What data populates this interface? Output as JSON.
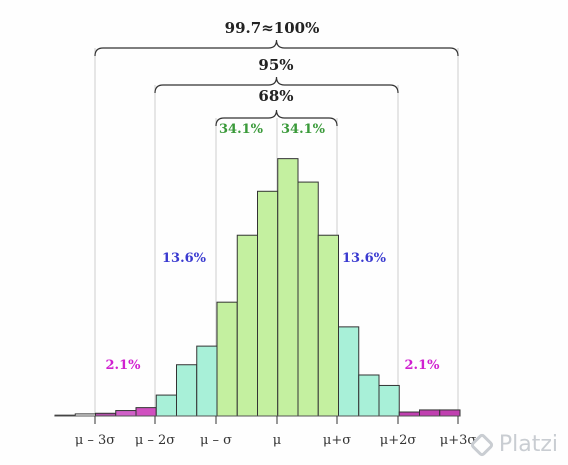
{
  "chart_data": {
    "type": "bar",
    "title": "",
    "xlabel": "",
    "ylabel": "",
    "x_ticks": [
      "μ – 3σ",
      "μ – 2σ",
      "μ – σ",
      "μ",
      "μ+σ",
      "μ+2σ",
      "μ+3σ"
    ],
    "bins": [
      {
        "value": 0.4,
        "region": "tail"
      },
      {
        "value": 1.0,
        "region": "tail"
      },
      {
        "value": 1.3,
        "region": "tail"
      },
      {
        "value": 2.6,
        "region": "tail"
      },
      {
        "value": 4.0,
        "region": "tail"
      },
      {
        "value": 10.0,
        "region": "two-sigma"
      },
      {
        "value": 24.5,
        "region": "two-sigma"
      },
      {
        "value": 33.4,
        "region": "two-sigma"
      },
      {
        "value": 54.4,
        "region": "one-sigma"
      },
      {
        "value": 86.4,
        "region": "one-sigma"
      },
      {
        "value": 107.4,
        "region": "one-sigma"
      },
      {
        "value": 123.0,
        "region": "one-sigma"
      },
      {
        "value": 111.8,
        "region": "one-sigma"
      },
      {
        "value": 86.4,
        "region": "one-sigma"
      },
      {
        "value": 42.6,
        "region": "two-sigma"
      },
      {
        "value": 19.6,
        "region": "two-sigma"
      },
      {
        "value": 14.6,
        "region": "two-sigma"
      },
      {
        "value": 1.9,
        "region": "tail"
      },
      {
        "value": 2.9,
        "region": "tail"
      },
      {
        "value": 2.9,
        "region": "tail"
      }
    ],
    "ylim": [
      0,
      130
    ],
    "grid": false,
    "annotations": {
      "brace_3sigma": "99.7≈100%",
      "brace_2sigma": "95%",
      "brace_1sigma": "68%",
      "left_1sigma": "34.1%",
      "right_1sigma": "34.1%",
      "left_2sigma": "13.6%",
      "right_2sigma": "13.6%",
      "left_3sigma": "2.1%",
      "right_3sigma": "2.1%"
    },
    "colors": {
      "one-sigma": "#c4f0a0",
      "two-sigma": "#a8f0d8",
      "tail": "#d050c0",
      "tail_outer": "#ffffff",
      "green_label": "#3a9a3a",
      "blue_label": "#3a3ad0",
      "magenta_label": "#d020d0"
    }
  },
  "watermark": "Platzi"
}
